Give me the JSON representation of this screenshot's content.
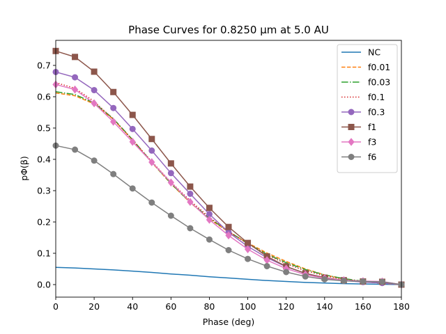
{
  "chart_data": {
    "type": "line",
    "title": "Phase Curves for 0.8250 μm at 5.0 AU",
    "xlabel": "Phase (deg)",
    "ylabel": "pΦ(β)",
    "xlim": [
      0,
      180
    ],
    "ylim": [
      -0.04,
      0.78
    ],
    "xticks": [
      "0",
      "20",
      "40",
      "60",
      "80",
      "100",
      "120",
      "140",
      "160",
      "180"
    ],
    "yticks": [
      "0.0",
      "0.1",
      "0.2",
      "0.3",
      "0.4",
      "0.5",
      "0.6",
      "0.7"
    ],
    "grid": false,
    "legend_position": "top-right",
    "x": [
      0,
      10,
      20,
      30,
      40,
      50,
      60,
      70,
      80,
      90,
      100,
      110,
      120,
      130,
      140,
      150,
      160,
      170,
      180
    ],
    "series": [
      {
        "name": "NC",
        "color": "#1f77b4",
        "dash": "solid",
        "marker": "none",
        "values": [
          0.055,
          0.053,
          0.05,
          0.047,
          0.043,
          0.039,
          0.034,
          0.03,
          0.025,
          0.021,
          0.017,
          0.013,
          0.01,
          0.007,
          0.005,
          0.003,
          0.002,
          0.001,
          0.0
        ]
      },
      {
        "name": "f0.01",
        "color": "#ff7f0e",
        "dash": "dashed",
        "marker": "none",
        "values": [
          0.612,
          0.603,
          0.577,
          0.528,
          0.462,
          0.39,
          0.322,
          0.262,
          0.21,
          0.168,
          0.133,
          0.101,
          0.074,
          0.05,
          0.031,
          0.018,
          0.009,
          0.004,
          0.0
        ]
      },
      {
        "name": "f0.03",
        "color": "#2ca02c",
        "dash": "dashdot",
        "marker": "none",
        "values": [
          0.616,
          0.607,
          0.58,
          0.53,
          0.463,
          0.391,
          0.323,
          0.263,
          0.212,
          0.17,
          0.131,
          0.097,
          0.07,
          0.048,
          0.031,
          0.019,
          0.011,
          0.006,
          0.0
        ]
      },
      {
        "name": "f0.1",
        "color": "#d62728",
        "dash": "dotted",
        "marker": "none",
        "values": [
          0.645,
          0.627,
          0.585,
          0.528,
          0.462,
          0.393,
          0.327,
          0.268,
          0.215,
          0.17,
          0.13,
          0.095,
          0.066,
          0.044,
          0.028,
          0.017,
          0.01,
          0.005,
          0.0
        ]
      },
      {
        "name": "f0.3",
        "color": "#9467bd",
        "dash": "solid",
        "marker": "circle",
        "values": [
          0.679,
          0.662,
          0.621,
          0.564,
          0.497,
          0.428,
          0.356,
          0.29,
          0.225,
          0.167,
          0.122,
          0.086,
          0.057,
          0.036,
          0.022,
          0.013,
          0.008,
          0.005,
          0.0
        ]
      },
      {
        "name": "f1",
        "color": "#8c564b",
        "dash": "solid",
        "marker": "square",
        "values": [
          0.746,
          0.727,
          0.68,
          0.615,
          0.542,
          0.465,
          0.387,
          0.313,
          0.245,
          0.184,
          0.133,
          0.09,
          0.058,
          0.036,
          0.022,
          0.014,
          0.01,
          0.009,
          0.0
        ]
      },
      {
        "name": "f3",
        "color": "#e377c2",
        "dash": "solid",
        "marker": "diamond",
        "values": [
          0.639,
          0.623,
          0.579,
          0.52,
          0.456,
          0.391,
          0.326,
          0.264,
          0.207,
          0.157,
          0.113,
          0.078,
          0.051,
          0.032,
          0.02,
          0.014,
          0.011,
          0.01,
          0.0
        ]
      },
      {
        "name": "f6",
        "color": "#7f7f7f",
        "dash": "solid",
        "marker": "circle",
        "values": [
          0.444,
          0.431,
          0.396,
          0.353,
          0.307,
          0.262,
          0.22,
          0.18,
          0.144,
          0.11,
          0.082,
          0.059,
          0.04,
          0.026,
          0.017,
          0.012,
          0.01,
          0.009,
          0.0
        ]
      }
    ]
  }
}
